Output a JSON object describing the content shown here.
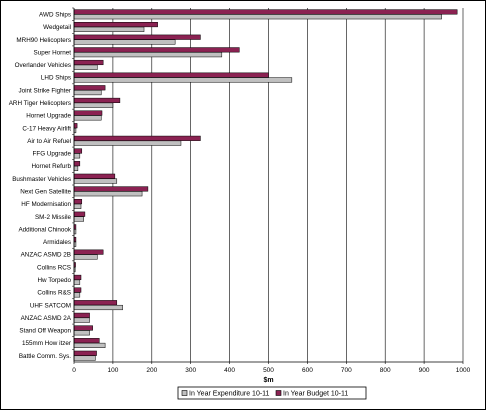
{
  "chart_data": {
    "type": "bar",
    "orientation": "horizontal",
    "title": "",
    "xlabel": "$m",
    "ylabel": "",
    "xlim": [
      0,
      1000
    ],
    "xticks": [
      0,
      100,
      200,
      300,
      400,
      500,
      600,
      700,
      800,
      900,
      1000
    ],
    "grid": "vertical major gridlines",
    "legend_position": "bottom",
    "categories": [
      "AWD Ships",
      "Wedgetail",
      "MRH90 Helicopters",
      "Super Hornet",
      "Overlander Vehicles",
      "LHD Ships",
      "Joint Strike Fighter",
      "ARH Tiger Helicopters",
      "Hornet Upgrade",
      "C-17 Heavy Airlift",
      "Air to Air Refuel",
      "FFG Upgrade",
      "Hornet Refurb",
      "Bushmaster Vehicles",
      "Next Gen Satellite",
      "HF Modernisation",
      "SM-2 Missile",
      "Additional Chinook",
      "Armidales",
      "ANZAC ASMD 2B",
      "Collins RCS",
      "Hw Torpedo",
      "Collins R&S",
      "UHF SATCOM",
      "ANZAC ASMD 2A",
      "Stand Off Weapon",
      "155mm How itzer",
      "Battle Comm. Sys."
    ],
    "series": [
      {
        "name": "In Year Expenditure 10-11",
        "color": "#c0c0c0",
        "values": [
          945,
          180,
          260,
          380,
          60,
          560,
          70,
          100,
          70,
          5,
          275,
          15,
          10,
          110,
          175,
          18,
          25,
          5,
          5,
          60,
          3,
          15,
          15,
          125,
          40,
          40,
          80,
          55
        ]
      },
      {
        "name": "In Year Budget 10-11",
        "color": "#8b2252",
        "values": [
          985,
          215,
          325,
          425,
          75,
          500,
          80,
          118,
          72,
          8,
          325,
          20,
          15,
          105,
          190,
          20,
          28,
          5,
          5,
          75,
          4,
          18,
          18,
          110,
          40,
          48,
          65,
          58
        ]
      }
    ]
  }
}
